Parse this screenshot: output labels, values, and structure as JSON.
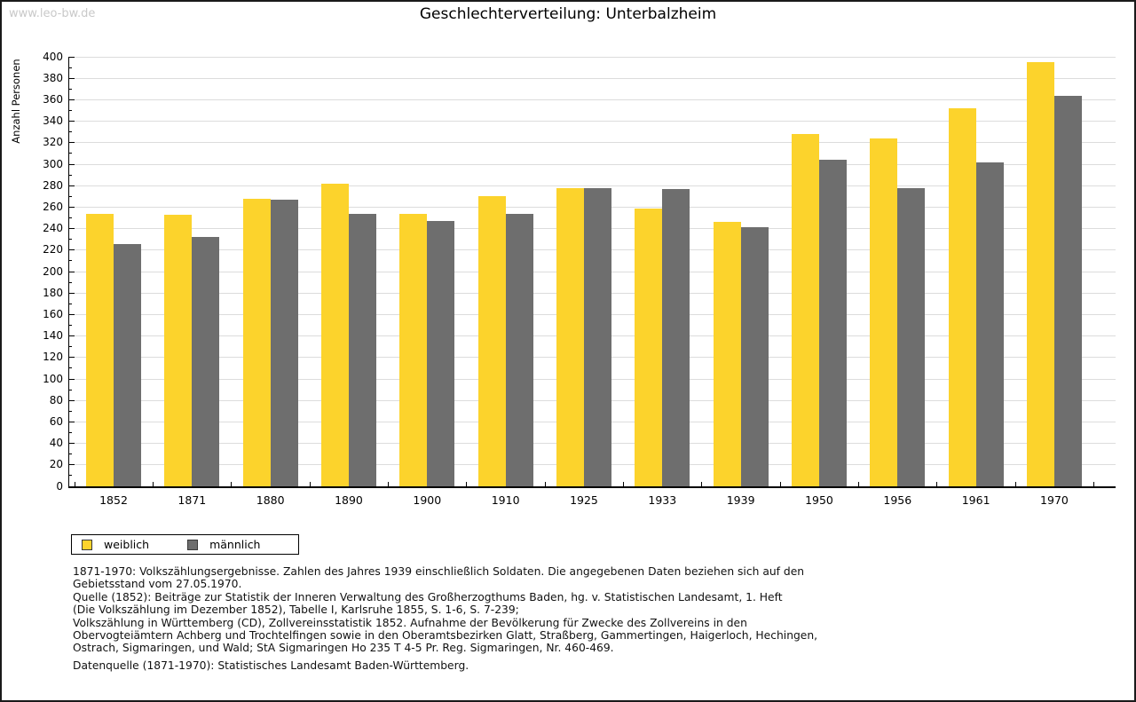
{
  "watermark": "www.leo-bw.de",
  "title": "Geschlechterverteilung: Unterbalzheim",
  "chart_data": {
    "type": "bar",
    "title": "Geschlechterverteilung: Unterbalzheim",
    "xlabel": "",
    "ylabel": "Anzahl Personen",
    "ylim": [
      0,
      400
    ],
    "ytick_step": 20,
    "grid": true,
    "legend_position": "bottom-left",
    "categories": [
      "1852",
      "1871",
      "1880",
      "1890",
      "1900",
      "1910",
      "1925",
      "1933",
      "1939",
      "1950",
      "1956",
      "1961",
      "1970"
    ],
    "series": [
      {
        "name": "weiblich",
        "color": "#fcd32c",
        "values": [
          254,
          253,
          268,
          282,
          254,
          270,
          278,
          259,
          246,
          328,
          324,
          352,
          395
        ]
      },
      {
        "name": "männlich",
        "color": "#6e6e6e",
        "values": [
          226,
          232,
          267,
          254,
          247,
          254,
          278,
          277,
          241,
          304,
          278,
          302,
          364
        ]
      }
    ]
  },
  "footer": {
    "lines": [
      "1871-1970: Volkszählungsergebnisse. Zahlen des Jahres 1939 einschließlich Soldaten. Die angegebenen Daten beziehen sich auf den",
      "Gebietsstand vom 27.05.1970.",
      "Quelle (1852): Beiträge zur Statistik der Inneren Verwaltung des Großherzogthums Baden, hg. v. Statistischen Landesamt, 1. Heft",
      "(Die Volkszählung im Dezember 1852), Tabelle I, Karlsruhe 1855, S. 1-6, S. 7-239;",
      "Volkszählung in Württemberg (CD), Zollvereinsstatistik 1852. Aufnahme der Bevölkerung für Zwecke des Zollvereins in den",
      "Obervogteiämtern Achberg und Trochtelfingen sowie in den Oberamtsbezirken Glatt, Straßberg, Gammertingen, Haigerloch, Hechingen,",
      "Ostrach, Sigmaringen, und Wald; StA Sigmaringen Ho 235 T 4-5 Pr. Reg. Sigmaringen, Nr. 460-469."
    ],
    "datasource": "Datenquelle (1871-1970): Statistisches Landesamt Baden-Württemberg."
  },
  "colors": {
    "female_bar": "#fcd32c",
    "male_bar": "#6e6e6e",
    "gridline": "#dcdcdc",
    "axis": "#000000",
    "watermark": "#c9c9c9"
  }
}
